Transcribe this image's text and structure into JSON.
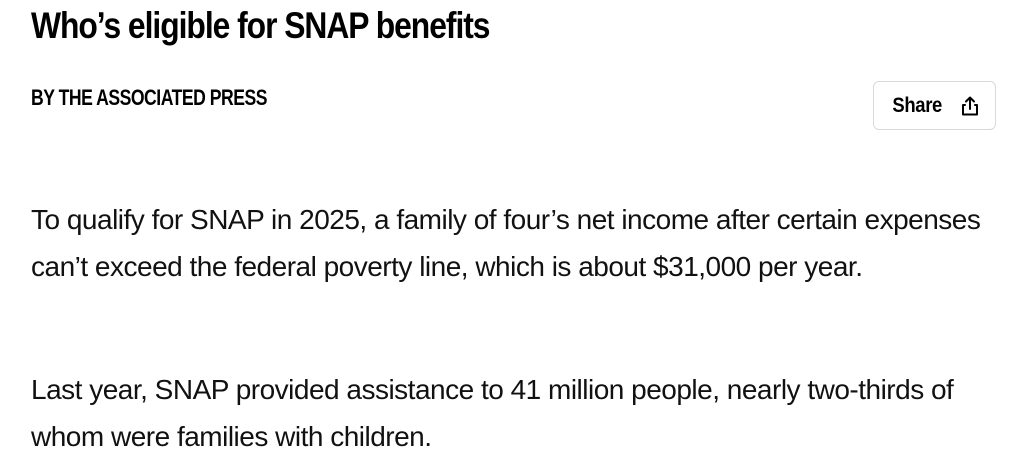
{
  "article": {
    "headline": "Who’s eligible for SNAP benefits",
    "byline": "BY THE ASSOCIATED PRESS",
    "share": {
      "label": "Share",
      "icon": "share-icon"
    },
    "paragraphs": [
      "To qualify for SNAP in 2025, a family of four’s net income after certain expenses can’t exceed the federal poverty line, which is about $31,000 per year.",
      "Last year, SNAP provided assistance to 41 million people, nearly two-thirds of whom were families with children."
    ]
  }
}
